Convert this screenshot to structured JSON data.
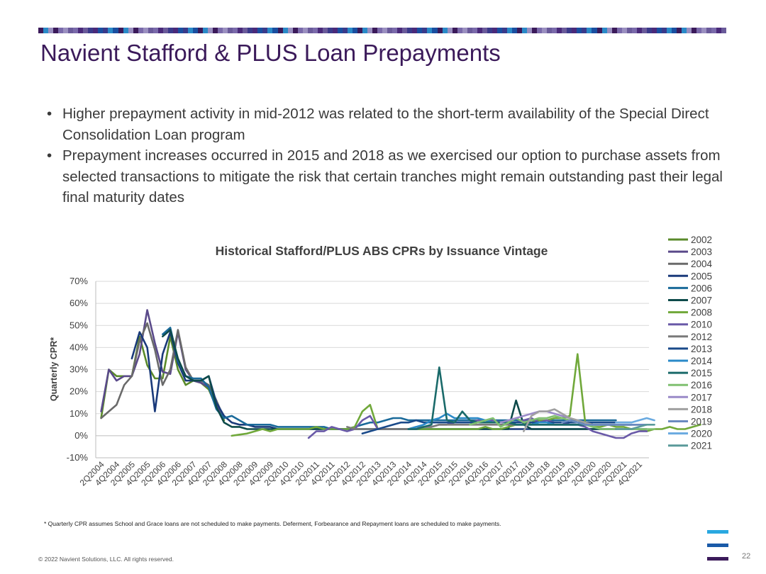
{
  "header": {
    "title": "Navient Stafford & PLUS Loan Prepayments",
    "bar_colors": [
      "#3b1a5a",
      "#6a5a9a",
      "#1a4fa0",
      "#9a8fc0",
      "#4a2a7a",
      "#2a8ac8",
      "#7a6aaa",
      "#3a3a8a"
    ]
  },
  "bullets": [
    "Higher prepayment activity in mid-2012 was related to the short-term availability of the Special Direct Consolidation Loan program",
    "Prepayment increases occurred in 2015 and 2018 as we exercised our option to purchase assets from selected transactions to mitigate the risk that certain tranches might remain outstanding past their legal final maturity dates"
  ],
  "chart_data": {
    "type": "line",
    "title": "Historical Stafford/PLUS ABS CPRs by Issuance Vintage",
    "ylabel": "Quarterly CPR*",
    "xlabel": "",
    "ylim": [
      -10,
      70
    ],
    "y_ticks": [
      "-10%",
      "0%",
      "10%",
      "20%",
      "30%",
      "40%",
      "50%",
      "60%",
      "70%"
    ],
    "x_tick_labels": [
      "2Q2004",
      "4Q2004",
      "2Q2005",
      "4Q2005",
      "2Q2006",
      "4Q2006",
      "2Q2007",
      "4Q2007",
      "2Q2008",
      "4Q2008",
      "2Q2009",
      "4Q2009",
      "2Q2010",
      "4Q2010",
      "2Q2011",
      "4Q2011",
      "2Q2012",
      "4Q2012",
      "2Q2013",
      "4Q2013",
      "2Q2014",
      "4Q2014",
      "2Q2015",
      "4Q2015",
      "2Q2016",
      "4Q2016",
      "2Q2017",
      "4Q2017",
      "2Q2018",
      "4Q2018",
      "2Q2019",
      "4Q2019",
      "2Q2020",
      "4Q2020",
      "2Q2021",
      "4Q2021"
    ],
    "grid": "horizontal",
    "legend_position": "right",
    "series": [
      {
        "name": "2002",
        "color": "#5a8a2a",
        "start": "2Q2004",
        "values": [
          8,
          30,
          27,
          27,
          27,
          45,
          32,
          26,
          26,
          45,
          30,
          23,
          25,
          24,
          21,
          13,
          7
        ]
      },
      {
        "name": "2003",
        "color": "#5a4a8a",
        "start": "2Q2004",
        "values": [
          11,
          30,
          25,
          27,
          27,
          37,
          57,
          42,
          29,
          28,
          47,
          30,
          25,
          24,
          22,
          14,
          8
        ]
      },
      {
        "name": "2004",
        "color": "#6a6a6a",
        "start": "2Q2004",
        "values": [
          8,
          11,
          14,
          23,
          27,
          43,
          51,
          39,
          23,
          30,
          48,
          31,
          25,
          25,
          23,
          16,
          8
        ]
      },
      {
        "name": "2005",
        "color": "#1a3a7a",
        "start": "2Q2005",
        "values": [
          35,
          47,
          40,
          11,
          37,
          47,
          33,
          25,
          25,
          25,
          27,
          15,
          9,
          6,
          5,
          5,
          4,
          4,
          4,
          3,
          3,
          3,
          3,
          3,
          3,
          3,
          3,
          3,
          3,
          3,
          3,
          3,
          3,
          3,
          3,
          3,
          3,
          3,
          3,
          3,
          3,
          3,
          3,
          3,
          3,
          3,
          3,
          3,
          3,
          3,
          3,
          3,
          3,
          3,
          3,
          3,
          3,
          3,
          3,
          3,
          3,
          3,
          3,
          3,
          3,
          3,
          3,
          3
        ]
      },
      {
        "name": "2006",
        "color": "#1a6a9a",
        "start": "2Q2006",
        "values": [
          46,
          49,
          34,
          27,
          26,
          26,
          22,
          12,
          8,
          9,
          7,
          5,
          5,
          5,
          5,
          4,
          4,
          4,
          4,
          4,
          4,
          4,
          3,
          3,
          3,
          4,
          5,
          6,
          6,
          7,
          8,
          8,
          7,
          7,
          7,
          7,
          7,
          7,
          7,
          7,
          7,
          7,
          7,
          7,
          7,
          7,
          7,
          7,
          7,
          7,
          7,
          7,
          7,
          7,
          7,
          7,
          7,
          7,
          7,
          7
        ]
      },
      {
        "name": "2007",
        "color": "#0d4a4a",
        "start": "2Q2006",
        "values": [
          45,
          48,
          35,
          27,
          25,
          25,
          27,
          13,
          6,
          4,
          4,
          3,
          3,
          3,
          3,
          3,
          3,
          3,
          3,
          3,
          3,
          3,
          3,
          3,
          3,
          3,
          3,
          3,
          3,
          3,
          3,
          3,
          3,
          3,
          3,
          3,
          3,
          3,
          3,
          3,
          3,
          3,
          3,
          3,
          3,
          3,
          16,
          5,
          3,
          3,
          3,
          3,
          3,
          3,
          3,
          3,
          3,
          3,
          3,
          3
        ]
      },
      {
        "name": "2008",
        "color": "#70a83a",
        "start": "3Q2008",
        "values": [
          0,
          0.5,
          1,
          2,
          3,
          2,
          3,
          3,
          3,
          3,
          3,
          4,
          3,
          3,
          3,
          3,
          4,
          11,
          14,
          3,
          3,
          3,
          3,
          3,
          3,
          3,
          3,
          3,
          3,
          3,
          3,
          3,
          3,
          4,
          3,
          3,
          4,
          5,
          5,
          6,
          7,
          7,
          8,
          8,
          9,
          37,
          6,
          4,
          4,
          5,
          4,
          4,
          3,
          3,
          2,
          3,
          3,
          4,
          3,
          3,
          4,
          5
        ]
      },
      {
        "name": "2010",
        "color": "#6a5aa8",
        "start": "1Q2011",
        "values": [
          -1,
          2,
          2,
          4,
          3,
          2,
          3,
          7,
          9,
          3,
          3,
          3,
          3,
          3,
          3,
          4,
          4,
          5,
          5,
          6,
          6,
          6,
          7,
          7,
          7,
          6,
          6,
          6,
          7,
          8,
          6,
          7,
          6,
          6,
          5,
          5,
          4,
          2,
          1,
          0,
          -1,
          -1,
          1,
          2,
          2
        ]
      },
      {
        "name": "2012",
        "color": "#7a7a7a",
        "start": "2Q2012",
        "values": [
          4,
          3,
          3,
          3,
          3,
          3,
          3,
          3,
          3,
          4,
          4,
          4,
          5,
          5,
          5,
          5,
          5,
          5,
          5,
          5,
          5,
          5,
          5,
          5,
          5,
          5,
          5,
          5,
          5,
          5,
          5,
          5,
          5,
          5,
          5,
          5,
          5,
          5,
          5,
          5
        ]
      },
      {
        "name": "2013",
        "color": "#1a4a8a",
        "start": "4Q2012",
        "values": [
          1,
          2,
          3,
          4,
          5,
          6,
          6,
          7,
          6,
          6,
          6,
          6,
          6,
          6,
          6,
          6,
          6,
          6,
          6,
          6,
          6,
          6,
          6,
          6,
          6,
          6,
          6,
          6,
          6,
          6,
          6,
          6,
          6,
          6,
          6,
          6
        ]
      },
      {
        "name": "2014",
        "color": "#2a8ac8",
        "start": "2Q2014",
        "values": [
          3,
          4,
          5,
          7,
          8,
          10,
          8,
          8,
          8,
          8,
          7,
          6,
          6,
          6,
          5,
          5,
          5,
          6,
          6,
          5,
          5,
          5,
          5,
          5,
          5,
          5,
          5,
          5,
          5,
          5
        ]
      },
      {
        "name": "2015",
        "color": "#1a6a6a",
        "start": "2Q2014",
        "values": [
          3,
          3,
          4,
          5,
          31,
          7,
          6,
          11,
          7,
          6,
          6,
          6,
          6,
          6,
          5,
          5,
          5,
          5,
          5,
          5,
          5,
          5,
          5,
          5,
          5,
          5,
          5,
          5,
          5,
          5
        ]
      },
      {
        "name": "2016",
        "color": "#80c070",
        "start": "2Q2016",
        "values": [
          5,
          6,
          7,
          8,
          4,
          6,
          8,
          6,
          7,
          8,
          8,
          9,
          8,
          7,
          6,
          5,
          4,
          3,
          3,
          3,
          3,
          3,
          3,
          3,
          3
        ]
      },
      {
        "name": "2017",
        "color": "#9a8ac8",
        "start": "2Q2017",
        "values": [
          6,
          7,
          8,
          9,
          10,
          11,
          11,
          10,
          9,
          8,
          7,
          6,
          5,
          5,
          5,
          5,
          5,
          5,
          5
        ]
      },
      {
        "name": "2018",
        "color": "#a0a0a0",
        "start": "1Q2018",
        "values": [
          2,
          9,
          11,
          11,
          12,
          10,
          8,
          7,
          6,
          5,
          5,
          5,
          5,
          5,
          5,
          5
        ]
      },
      {
        "name": "2019",
        "color": "#6a8ac0",
        "start": "2Q2019",
        "values": [
          6,
          7,
          6,
          5,
          5,
          5,
          5,
          5,
          5,
          5,
          5,
          5
        ]
      },
      {
        "name": "2020",
        "color": "#6aaae0",
        "start": "1Q2021",
        "values": [
          6,
          6,
          6,
          7,
          8,
          7
        ]
      },
      {
        "name": "2021",
        "color": "#5a9a9a",
        "start": "1Q2021",
        "values": [
          3,
          3,
          3,
          4,
          5,
          5
        ]
      }
    ]
  },
  "footnote": "* Quarterly CPR assumes School and Grace loans are not scheduled to make payments. Deferment, Forbearance and Repayment loans are scheduled to make payments.",
  "footer": {
    "copyright": "© 2022 Navient Solutions, LLC. All rights reserved.",
    "page_number": "22",
    "logo_colors": [
      "#29a8e0",
      "#1a5aa8",
      "#3b1a5a"
    ]
  }
}
